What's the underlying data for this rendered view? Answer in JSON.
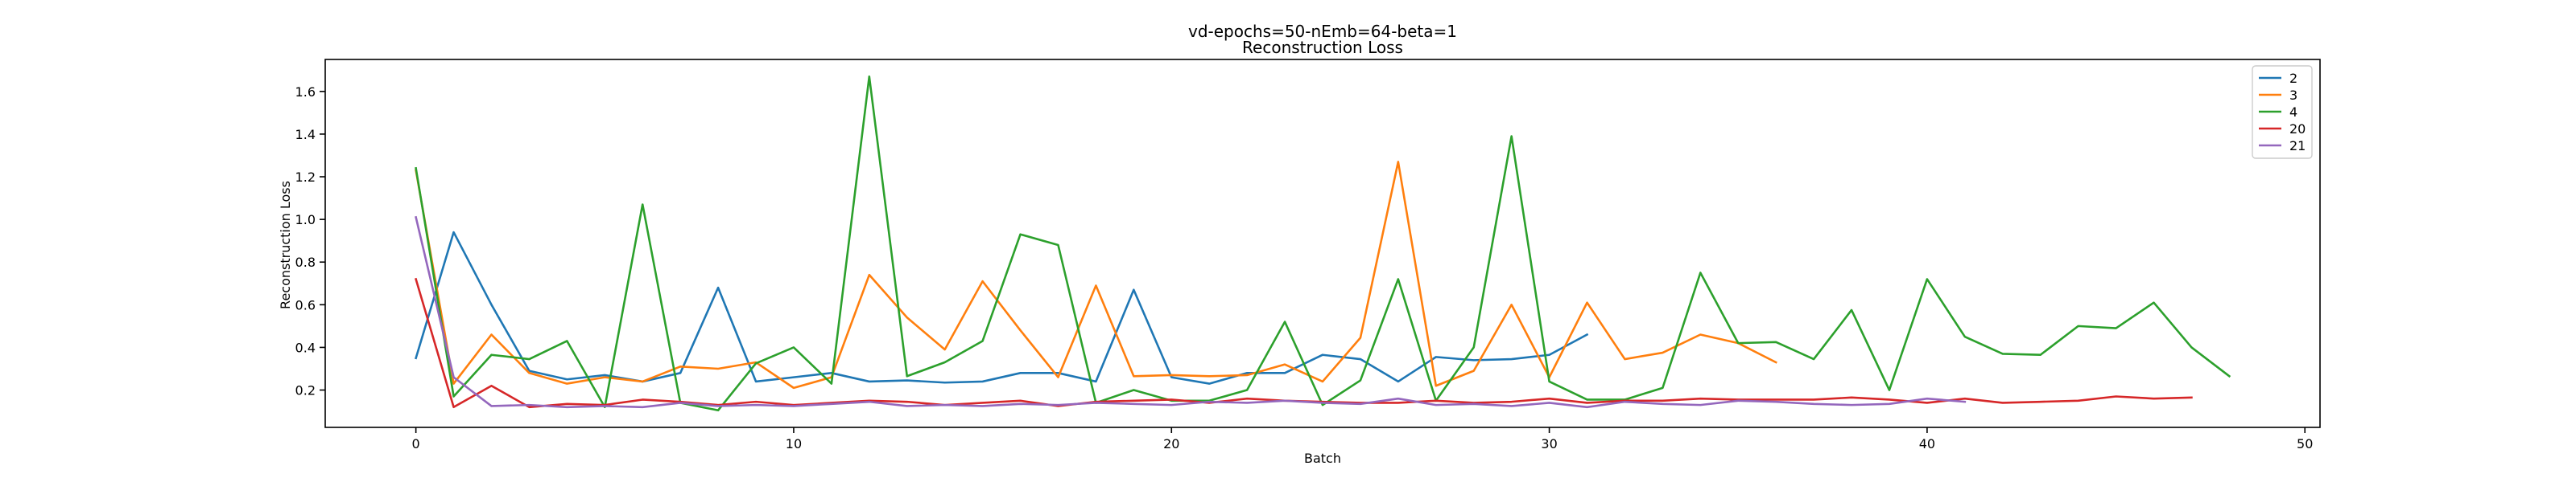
{
  "chart_data": {
    "type": "line",
    "title": "vd-epochs=50-nEmb=64-beta=1",
    "subtitle": "Reconstruction Loss",
    "xlabel": "Batch",
    "ylabel": "Reconstruction Loss",
    "xlim": [
      -2.4,
      50.4
    ],
    "ylim": [
      0.025,
      1.75
    ],
    "xticks": [
      0,
      10,
      20,
      30,
      40,
      50
    ],
    "yticks": [
      0.2,
      0.4,
      0.6,
      0.8,
      1.0,
      1.2,
      1.4,
      1.6
    ],
    "grid": false,
    "legend_position": "top-right",
    "series": [
      {
        "name": "2",
        "color": "#1f77b4",
        "values": [
          0.35,
          0.94,
          0.6,
          0.29,
          0.25,
          0.27,
          0.24,
          0.28,
          0.68,
          0.24,
          0.26,
          0.28,
          0.24,
          0.245,
          0.235,
          0.24,
          0.28,
          0.28,
          0.24,
          0.67,
          0.26,
          0.23,
          0.28,
          0.28,
          0.365,
          0.345,
          0.24,
          0.355,
          0.34,
          0.345,
          0.365,
          0.46
        ]
      },
      {
        "name": "3",
        "color": "#ff7f0e",
        "values": [
          1.23,
          0.23,
          0.46,
          0.28,
          0.23,
          0.26,
          0.24,
          0.31,
          0.3,
          0.33,
          0.21,
          0.26,
          0.74,
          0.54,
          0.39,
          0.71,
          0.48,
          0.26,
          0.69,
          0.265,
          0.27,
          0.265,
          0.27,
          0.32,
          0.24,
          0.445,
          1.27,
          0.22,
          0.29,
          0.6,
          0.26,
          0.61,
          0.345,
          0.375,
          0.46,
          0.42,
          0.33
        ]
      },
      {
        "name": "4",
        "color": "#2ca02c",
        "values": [
          1.24,
          0.17,
          0.365,
          0.345,
          0.43,
          0.12,
          1.07,
          0.14,
          0.105,
          0.325,
          0.4,
          0.23,
          1.67,
          0.265,
          0.33,
          0.43,
          0.93,
          0.88,
          0.14,
          0.2,
          0.15,
          0.15,
          0.2,
          0.52,
          0.13,
          0.245,
          0.72,
          0.15,
          0.4,
          1.39,
          0.24,
          0.155,
          0.155,
          0.21,
          0.75,
          0.42,
          0.425,
          0.345,
          0.575,
          0.2,
          0.72,
          0.45,
          0.37,
          0.365,
          0.5,
          0.49,
          0.61,
          0.4,
          0.265
        ]
      },
      {
        "name": "20",
        "color": "#d62728",
        "values": [
          0.72,
          0.12,
          0.22,
          0.12,
          0.135,
          0.13,
          0.155,
          0.145,
          0.13,
          0.145,
          0.13,
          0.14,
          0.15,
          0.145,
          0.13,
          0.14,
          0.15,
          0.125,
          0.145,
          0.15,
          0.155,
          0.14,
          0.16,
          0.15,
          0.145,
          0.14,
          0.14,
          0.15,
          0.14,
          0.145,
          0.16,
          0.14,
          0.15,
          0.15,
          0.16,
          0.155,
          0.155,
          0.155,
          0.165,
          0.155,
          0.14,
          0.16,
          0.14,
          0.145,
          0.15,
          0.17,
          0.16,
          0.165
        ]
      },
      {
        "name": "21",
        "color": "#9467bd",
        "values": [
          1.01,
          0.26,
          0.125,
          0.13,
          0.12,
          0.125,
          0.12,
          0.14,
          0.125,
          0.13,
          0.125,
          0.135,
          0.145,
          0.125,
          0.13,
          0.125,
          0.135,
          0.13,
          0.14,
          0.135,
          0.13,
          0.145,
          0.14,
          0.15,
          0.14,
          0.135,
          0.16,
          0.13,
          0.135,
          0.125,
          0.14,
          0.12,
          0.145,
          0.135,
          0.13,
          0.15,
          0.145,
          0.135,
          0.13,
          0.135,
          0.16,
          0.145
        ]
      }
    ]
  }
}
